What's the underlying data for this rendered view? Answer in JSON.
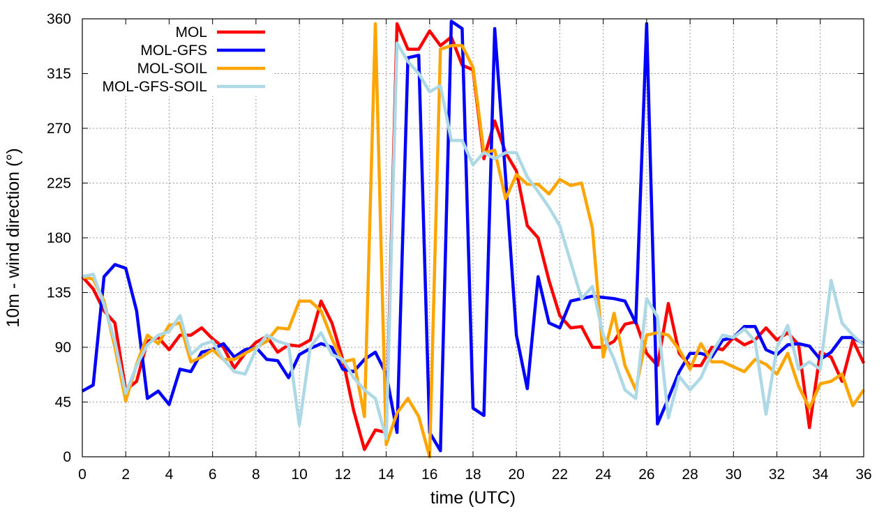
{
  "chart_data": {
    "type": "line",
    "xlabel": "time (UTC)",
    "ylabel": "10m - wind direction (°)",
    "xlim": [
      0,
      36
    ],
    "ylim": [
      0,
      360
    ],
    "xticks": [
      0,
      2,
      4,
      6,
      8,
      10,
      12,
      14,
      16,
      18,
      20,
      22,
      24,
      26,
      28,
      30,
      32,
      34,
      36
    ],
    "yticks": [
      0,
      45,
      90,
      135,
      180,
      225,
      270,
      315,
      360
    ],
    "grid": true,
    "legend_position": "top-left",
    "x": [
      0,
      0.5,
      1,
      1.5,
      2,
      2.5,
      3,
      3.5,
      4,
      4.5,
      5,
      5.5,
      6,
      6.5,
      7,
      7.5,
      8,
      8.5,
      9,
      9.5,
      10,
      10.5,
      11,
      11.5,
      12,
      12.5,
      13,
      13.5,
      14,
      14.5,
      15,
      15.5,
      16,
      16.5,
      17,
      17.5,
      18,
      18.5,
      19,
      19.5,
      20,
      20.5,
      21,
      21.5,
      22,
      22.5,
      23,
      23.5,
      24,
      24.5,
      25,
      25.5,
      26,
      26.5,
      27,
      27.5,
      28,
      28.5,
      29,
      29.5,
      30,
      30.5,
      31,
      31.5,
      32,
      32.5,
      33,
      33.5,
      34,
      34.5,
      35,
      35.5,
      36
    ],
    "series": [
      {
        "name": "MOL",
        "color": "#ff0000",
        "values": [
          148,
          138,
          120,
          110,
          55,
          62,
          95,
          98,
          88,
          100,
          100,
          106,
          97,
          90,
          73,
          85,
          94,
          99,
          86,
          92,
          91,
          96,
          128,
          110,
          80,
          38,
          6,
          22,
          20,
          356,
          335,
          335,
          350,
          338,
          345,
          322,
          318,
          245,
          276,
          250,
          235,
          190,
          180,
          145,
          116,
          106,
          107,
          90,
          90,
          95,
          109,
          111,
          85,
          75,
          126,
          85,
          75,
          75,
          90,
          88,
          98,
          92,
          96,
          106,
          96,
          102,
          92,
          24,
          86,
          82,
          62,
          96,
          77
        ]
      },
      {
        "name": "MOL-GFS",
        "color": "#0000ff",
        "values": [
          54,
          59,
          148,
          158,
          155,
          120,
          48,
          54,
          43,
          72,
          70,
          86,
          88,
          93,
          82,
          88,
          90,
          80,
          79,
          65,
          84,
          89,
          93,
          90,
          72,
          70,
          80,
          86,
          68,
          20,
          328,
          330,
          20,
          5,
          358,
          352,
          40,
          34,
          352,
          230,
          100,
          56,
          148,
          110,
          106,
          128,
          130,
          132,
          131,
          130,
          128,
          110,
          356,
          27,
          48,
          70,
          85,
          85,
          82,
          96,
          98,
          107,
          107,
          88,
          84,
          92,
          93,
          91,
          80,
          86,
          98,
          98,
          93
        ]
      },
      {
        "name": "MOL-SOIL",
        "color": "#ffa500",
        "values": [
          148,
          146,
          128,
          90,
          46,
          76,
          100,
          93,
          108,
          110,
          78,
          82,
          88,
          80,
          80,
          85,
          90,
          95,
          106,
          105,
          128,
          128,
          120,
          97,
          78,
          80,
          33,
          356,
          10,
          36,
          48,
          33,
          0,
          335,
          338,
          338,
          320,
          250,
          252,
          212,
          232,
          224,
          224,
          216,
          228,
          223,
          225,
          188,
          82,
          118,
          75,
          55,
          100,
          102,
          100,
          88,
          72,
          93,
          78,
          78,
          74,
          70,
          80,
          76,
          68,
          85,
          58,
          40,
          60,
          62,
          68,
          42,
          55
        ]
      },
      {
        "name": "MOL-GFS-SOIL",
        "color": "#add8e6",
        "values": [
          148,
          150,
          125,
          95,
          52,
          75,
          92,
          100,
          103,
          116,
          84,
          92,
          95,
          80,
          70,
          68,
          88,
          100,
          95,
          92,
          26,
          90,
          102,
          84,
          80,
          65,
          55,
          48,
          15,
          340,
          325,
          315,
          300,
          305,
          260,
          260,
          240,
          250,
          245,
          250,
          250,
          230,
          218,
          205,
          190,
          160,
          130,
          140,
          100,
          80,
          55,
          48,
          130,
          115,
          32,
          66,
          55,
          65,
          85,
          100,
          98,
          105,
          95,
          35,
          90,
          108,
          72,
          78,
          72,
          145,
          110,
          100,
          92
        ]
      }
    ]
  }
}
